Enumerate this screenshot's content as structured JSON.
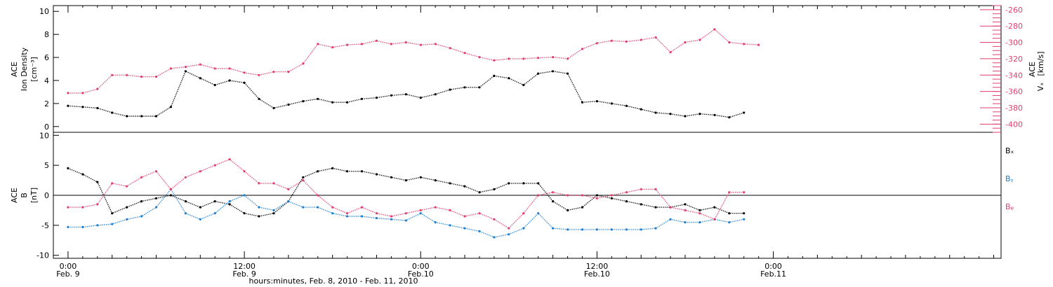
{
  "chart_data": [
    {
      "type": "scatter",
      "panel": "top",
      "title": "",
      "ylabel_left": [
        "ACE",
        "Ion Density",
        "[cm⁻³]"
      ],
      "ylabel_right": [
        "ACE",
        "Vₓ",
        "[km/s]"
      ],
      "ylim_left": [
        -0.5,
        10.5
      ],
      "yticks_left": [
        0,
        2,
        4,
        6,
        8,
        10
      ],
      "ylim_right": [
        -410,
        -255
      ],
      "yticks_right": [
        -260,
        -280,
        -300,
        -320,
        -340,
        -360,
        -380,
        -400
      ],
      "grid": false,
      "series": [
        {
          "axis": "left",
          "color": "#000000",
          "points": [
            [
              0,
              1.8
            ],
            [
              1,
              1.7
            ],
            [
              2,
              1.6
            ],
            [
              3,
              1.2
            ],
            [
              4,
              0.9
            ],
            [
              5,
              0.9
            ],
            [
              6,
              0.9
            ],
            [
              7,
              1.7
            ],
            [
              8,
              4.8
            ],
            [
              9,
              4.2
            ],
            [
              10,
              3.6
            ],
            [
              11,
              4.0
            ],
            [
              12,
              3.8
            ],
            [
              13,
              2.4
            ],
            [
              14,
              1.6
            ],
            [
              15,
              1.9
            ],
            [
              16,
              2.2
            ],
            [
              17,
              2.4
            ],
            [
              18,
              2.1
            ],
            [
              19,
              2.1
            ],
            [
              20,
              2.4
            ],
            [
              21,
              2.5
            ],
            [
              22,
              2.7
            ],
            [
              23,
              2.8
            ],
            [
              24,
              2.5
            ],
            [
              25,
              2.8
            ],
            [
              26,
              3.2
            ],
            [
              27,
              3.4
            ],
            [
              28,
              3.4
            ],
            [
              29,
              4.4
            ],
            [
              30,
              4.2
            ],
            [
              31,
              3.6
            ],
            [
              32,
              4.6
            ],
            [
              33,
              4.8
            ],
            [
              34,
              4.6
            ],
            [
              35,
              2.1
            ],
            [
              36,
              2.2
            ],
            [
              37,
              2.0
            ],
            [
              38,
              1.8
            ],
            [
              39,
              1.5
            ],
            [
              40,
              1.2
            ],
            [
              41,
              1.1
            ],
            [
              42,
              0.9
            ],
            [
              43,
              1.1
            ],
            [
              44,
              1.0
            ],
            [
              45,
              0.8
            ],
            [
              46,
              1.2
            ]
          ]
        },
        {
          "axis": "right",
          "color": "#e0406e",
          "points": [
            [
              0,
              -362
            ],
            [
              1,
              -362
            ],
            [
              2,
              -357
            ],
            [
              3,
              -340
            ],
            [
              4,
              -340
            ],
            [
              5,
              -342
            ],
            [
              6,
              -342
            ],
            [
              7,
              -332
            ],
            [
              8,
              -330
            ],
            [
              9,
              -327
            ],
            [
              10,
              -332
            ],
            [
              11,
              -332
            ],
            [
              12,
              -337
            ],
            [
              13,
              -340
            ],
            [
              14,
              -336
            ],
            [
              15,
              -336
            ],
            [
              16,
              -326
            ],
            [
              17,
              -302
            ],
            [
              18,
              -306
            ],
            [
              19,
              -303
            ],
            [
              20,
              -302
            ],
            [
              21,
              -298
            ],
            [
              22,
              -302
            ],
            [
              23,
              -300
            ],
            [
              24,
              -303
            ],
            [
              25,
              -302
            ],
            [
              26,
              -307
            ],
            [
              27,
              -313
            ],
            [
              28,
              -318
            ],
            [
              29,
              -322
            ],
            [
              30,
              -320
            ],
            [
              31,
              -320
            ],
            [
              32,
              -319
            ],
            [
              33,
              -318
            ],
            [
              34,
              -320
            ],
            [
              35,
              -308
            ],
            [
              36,
              -301
            ],
            [
              37,
              -298
            ],
            [
              38,
              -299
            ],
            [
              39,
              -297
            ],
            [
              40,
              -294
            ],
            [
              41,
              -312
            ],
            [
              42,
              -300
            ],
            [
              43,
              -297
            ],
            [
              44,
              -284
            ],
            [
              45,
              -300
            ],
            [
              46,
              -302
            ],
            [
              47,
              -303
            ]
          ]
        }
      ]
    },
    {
      "type": "scatter",
      "panel": "bottom",
      "title": "",
      "ylabel": [
        "ACE",
        "B",
        "[nT]"
      ],
      "ylim": [
        -10.5,
        10.5
      ],
      "yticks": [
        -10,
        -5,
        0,
        5,
        10
      ],
      "zero_line": true,
      "grid": false,
      "x_axis": {
        "xlabel": "hours:minutes, Feb. 8, 2010 - Feb. 11, 2010",
        "xlim_hours": [
          -1,
          63.5
        ],
        "ticks": [
          {
            "hours": 0,
            "time": "0:00",
            "date": "Feb. 9"
          },
          {
            "hours": 12,
            "time": "12:00",
            "date": "Feb. 9"
          },
          {
            "hours": 24,
            "time": "0:00",
            "date": "Feb.10"
          },
          {
            "hours": 36,
            "time": "12:00",
            "date": "Feb.10"
          },
          {
            "hours": 48,
            "time": "0:00",
            "date": "Feb.11"
          }
        ]
      },
      "series": [
        {
          "name": "Bₓ",
          "color": "#000000",
          "points": [
            [
              0,
              4.5
            ],
            [
              1,
              3.5
            ],
            [
              2,
              2.2
            ],
            [
              3,
              -3
            ],
            [
              4,
              -2
            ],
            [
              5,
              -1
            ],
            [
              6,
              -0.5
            ],
            [
              7,
              0
            ],
            [
              8,
              -1
            ],
            [
              9,
              -2
            ],
            [
              10,
              -1
            ],
            [
              11,
              -1.5
            ],
            [
              12,
              -3
            ],
            [
              13,
              -3.5
            ],
            [
              14,
              -3
            ],
            [
              15,
              -1
            ],
            [
              16,
              3
            ],
            [
              17,
              4
            ],
            [
              18,
              4.5
            ],
            [
              19,
              4
            ],
            [
              20,
              4
            ],
            [
              21,
              3.5
            ],
            [
              22,
              3
            ],
            [
              23,
              2.5
            ],
            [
              24,
              3
            ],
            [
              25,
              2.5
            ],
            [
              26,
              2
            ],
            [
              27,
              1.5
            ],
            [
              28,
              0.5
            ],
            [
              29,
              1
            ],
            [
              30,
              2
            ],
            [
              31,
              2
            ],
            [
              32,
              2
            ],
            [
              33,
              -1
            ],
            [
              34,
              -2.5
            ],
            [
              35,
              -2
            ],
            [
              36,
              0
            ],
            [
              37,
              -0.5
            ],
            [
              38,
              -1
            ],
            [
              39,
              -1.5
            ],
            [
              40,
              -2
            ],
            [
              41,
              -2
            ],
            [
              42,
              -1.5
            ],
            [
              43,
              -2.5
            ],
            [
              44,
              -2
            ],
            [
              45,
              -3
            ],
            [
              46,
              -3
            ]
          ]
        },
        {
          "name": "Bᵧ",
          "color": "#1e7fd1",
          "points": [
            [
              0,
              -5.3
            ],
            [
              1,
              -5.3
            ],
            [
              2,
              -5
            ],
            [
              3,
              -4.8
            ],
            [
              4,
              -4
            ],
            [
              5,
              -3.5
            ],
            [
              6,
              -2
            ],
            [
              7,
              1
            ],
            [
              8,
              -3
            ],
            [
              9,
              -4
            ],
            [
              10,
              -3
            ],
            [
              11,
              -1
            ],
            [
              12,
              0
            ],
            [
              13,
              -2
            ],
            [
              14,
              -2.5
            ],
            [
              15,
              -1
            ],
            [
              16,
              -2
            ],
            [
              17,
              -2
            ],
            [
              18,
              -3
            ],
            [
              19,
              -3.5
            ],
            [
              20,
              -3.5
            ],
            [
              21,
              -3.8
            ],
            [
              22,
              -4
            ],
            [
              23,
              -4.2
            ],
            [
              24,
              -3
            ],
            [
              25,
              -4.5
            ],
            [
              26,
              -5
            ],
            [
              27,
              -5.5
            ],
            [
              28,
              -6
            ],
            [
              29,
              -7
            ],
            [
              30,
              -6.5
            ],
            [
              31,
              -5.5
            ],
            [
              32,
              -3
            ],
            [
              33,
              -5.5
            ],
            [
              34,
              -5.7
            ],
            [
              35,
              -5.7
            ],
            [
              36,
              -5.7
            ],
            [
              37,
              -5.7
            ],
            [
              38,
              -5.7
            ],
            [
              39,
              -5.7
            ],
            [
              40,
              -5.5
            ],
            [
              41,
              -4
            ],
            [
              42,
              -4.5
            ],
            [
              43,
              -4.5
            ],
            [
              44,
              -4
            ],
            [
              45,
              -4.5
            ],
            [
              46,
              -4
            ]
          ]
        },
        {
          "name": "Bᵩ",
          "color": "#e0406e",
          "points": [
            [
              0,
              -2
            ],
            [
              1,
              -2
            ],
            [
              2,
              -1.5
            ],
            [
              3,
              2
            ],
            [
              4,
              1.5
            ],
            [
              5,
              3
            ],
            [
              6,
              4
            ],
            [
              7,
              1
            ],
            [
              8,
              3
            ],
            [
              9,
              4
            ],
            [
              10,
              5
            ],
            [
              11,
              6
            ],
            [
              12,
              4
            ],
            [
              13,
              2
            ],
            [
              14,
              2
            ],
            [
              15,
              1
            ],
            [
              16,
              2.5
            ],
            [
              17,
              0
            ],
            [
              18,
              -2
            ],
            [
              19,
              -3
            ],
            [
              20,
              -2
            ],
            [
              21,
              -3
            ],
            [
              22,
              -3.5
            ],
            [
              23,
              -3
            ],
            [
              24,
              -2.5
            ],
            [
              25,
              -2
            ],
            [
              26,
              -2.5
            ],
            [
              27,
              -3.5
            ],
            [
              28,
              -3
            ],
            [
              29,
              -4
            ],
            [
              30,
              -5.5
            ],
            [
              31,
              -3
            ],
            [
              32,
              0
            ],
            [
              33,
              0.5
            ],
            [
              34,
              0
            ],
            [
              35,
              0
            ],
            [
              36,
              -0.5
            ],
            [
              37,
              0
            ],
            [
              38,
              0.5
            ],
            [
              39,
              1
            ],
            [
              40,
              1
            ],
            [
              41,
              -2
            ],
            [
              42,
              -2.5
            ],
            [
              43,
              -3
            ],
            [
              44,
              -4
            ],
            [
              45,
              0.5
            ],
            [
              46,
              0.5
            ]
          ]
        }
      ]
    }
  ]
}
